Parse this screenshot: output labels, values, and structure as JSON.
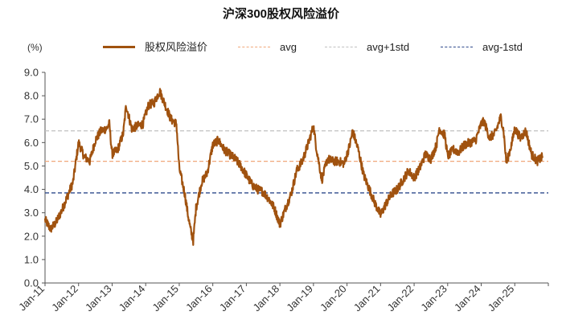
{
  "chart_data": {
    "type": "line",
    "title": "沪深300股权风险溢价",
    "ylabel": "(%)",
    "xlabel": "",
    "ylim": [
      0,
      9
    ],
    "y_ticks": [
      "0.0",
      "1.0",
      "2.0",
      "3.0",
      "4.0",
      "5.0",
      "6.0",
      "7.0",
      "8.0",
      "9.0"
    ],
    "x_ticks": [
      "Jan-11",
      "Jan-12",
      "Jan-13",
      "Jan-14",
      "Jan-15",
      "Jan-16",
      "Jan-17",
      "Jan-18",
      "Jan-19",
      "Jan-20",
      "Jan-21",
      "Jan-22",
      "Jan-23",
      "Jan-24",
      "Jan-25"
    ],
    "legend_position": "top",
    "grid": false,
    "series": [
      {
        "name": "股权风险溢价",
        "color": "#a0520f",
        "style": "solid",
        "points": [
          [
            "2011-01",
            2.7
          ],
          [
            "2011-03",
            2.3
          ],
          [
            "2011-05",
            2.6
          ],
          [
            "2011-07",
            3.1
          ],
          [
            "2011-09",
            3.7
          ],
          [
            "2011-11",
            4.3
          ],
          [
            "2012-01",
            6.0
          ],
          [
            "2012-03",
            5.4
          ],
          [
            "2012-05",
            5.2
          ],
          [
            "2012-07",
            6.1
          ],
          [
            "2012-09",
            6.5
          ],
          [
            "2012-11",
            6.6
          ],
          [
            "2012-12",
            6.8
          ],
          [
            "2013-01",
            5.5
          ],
          [
            "2013-03",
            5.7
          ],
          [
            "2013-05",
            6.4
          ],
          [
            "2013-06",
            7.6
          ],
          [
            "2013-08",
            6.6
          ],
          [
            "2013-10",
            6.7
          ],
          [
            "2013-12",
            6.8
          ],
          [
            "2014-02",
            7.6
          ],
          [
            "2014-04",
            7.7
          ],
          [
            "2014-06",
            8.2
          ],
          [
            "2014-08",
            7.6
          ],
          [
            "2014-10",
            7.0
          ],
          [
            "2014-12",
            6.8
          ],
          [
            "2015-01",
            4.9
          ],
          [
            "2015-03",
            3.8
          ],
          [
            "2015-04",
            3.0
          ],
          [
            "2015-05",
            2.3
          ],
          [
            "2015-06",
            1.8
          ],
          [
            "2015-07",
            3.2
          ],
          [
            "2015-09",
            4.3
          ],
          [
            "2015-11",
            4.7
          ],
          [
            "2016-01",
            5.9
          ],
          [
            "2016-03",
            6.1
          ],
          [
            "2016-05",
            5.7
          ],
          [
            "2016-07",
            5.5
          ],
          [
            "2016-09",
            5.3
          ],
          [
            "2016-11",
            5.0
          ],
          [
            "2017-01",
            4.6
          ],
          [
            "2017-03",
            4.2
          ],
          [
            "2017-05",
            4.0
          ],
          [
            "2017-07",
            3.9
          ],
          [
            "2017-09",
            3.6
          ],
          [
            "2017-11",
            3.2
          ],
          [
            "2018-01",
            2.5
          ],
          [
            "2018-03",
            3.2
          ],
          [
            "2018-05",
            3.8
          ],
          [
            "2018-07",
            4.8
          ],
          [
            "2018-09",
            5.2
          ],
          [
            "2018-11",
            5.9
          ],
          [
            "2019-01",
            6.7
          ],
          [
            "2019-02",
            5.8
          ],
          [
            "2019-04",
            4.4
          ],
          [
            "2019-06",
            5.3
          ],
          [
            "2019-08",
            5.2
          ],
          [
            "2019-10",
            5.2
          ],
          [
            "2019-12",
            5.1
          ],
          [
            "2020-02",
            5.9
          ],
          [
            "2020-03",
            6.5
          ],
          [
            "2020-05",
            5.7
          ],
          [
            "2020-07",
            4.6
          ],
          [
            "2020-09",
            4.0
          ],
          [
            "2020-11",
            3.4
          ],
          [
            "2021-01",
            2.9
          ],
          [
            "2021-03",
            3.4
          ],
          [
            "2021-05",
            3.8
          ],
          [
            "2021-07",
            4.0
          ],
          [
            "2021-09",
            4.4
          ],
          [
            "2021-11",
            4.8
          ],
          [
            "2022-01",
            4.5
          ],
          [
            "2022-03",
            4.9
          ],
          [
            "2022-05",
            5.5
          ],
          [
            "2022-07",
            5.3
          ],
          [
            "2022-09",
            5.9
          ],
          [
            "2022-10",
            6.6
          ],
          [
            "2022-12",
            6.3
          ],
          [
            "2023-01",
            5.4
          ],
          [
            "2023-03",
            5.7
          ],
          [
            "2023-05",
            5.6
          ],
          [
            "2023-07",
            5.9
          ],
          [
            "2023-09",
            6.0
          ],
          [
            "2023-11",
            6.1
          ],
          [
            "2024-01",
            6.8
          ],
          [
            "2024-02",
            6.9
          ],
          [
            "2024-04",
            6.2
          ],
          [
            "2024-06",
            6.4
          ],
          [
            "2024-08",
            7.1
          ],
          [
            "2024-09",
            6.5
          ],
          [
            "2024-10",
            5.1
          ],
          [
            "2024-12",
            6.0
          ],
          [
            "2025-01",
            6.6
          ],
          [
            "2025-03",
            6.2
          ],
          [
            "2025-05",
            6.5
          ],
          [
            "2025-07",
            5.5
          ],
          [
            "2025-09",
            5.2
          ],
          [
            "2025-11",
            5.4
          ]
        ]
      },
      {
        "name": "avg",
        "color": "#f0a87a",
        "style": "dashed",
        "value": 5.2
      },
      {
        "name": "avg+1std",
        "color": "#c0c0c0",
        "style": "dashed",
        "value": 6.5
      },
      {
        "name": "avg-1std",
        "color": "#2e4a8c",
        "style": "dashed",
        "value": 3.85
      }
    ]
  }
}
